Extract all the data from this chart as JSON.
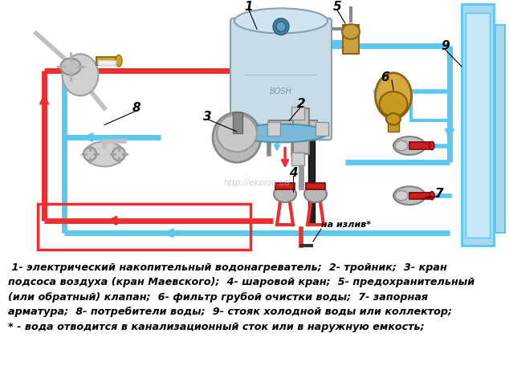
{
  "background_color": "#ffffff",
  "caption_lines": [
    " 1- электрический накопительный водонагреватель;  2- тройник;  3- кран",
    "подсоса воздуха (кран Маевского);  4- шаровой кран;  5- предохранительный",
    "(или обратный) клапан;  6- фильтр грубой очистки воды;  7- запорная",
    "арматура;  8- потребители воды;  9- стояк холодной воды или коллектор;",
    "* - вода отводится в канализационный сток или в наружную емкость;"
  ],
  "caption_fontsize": 9.2,
  "cold": "#5bc8f0",
  "hot": "#e83030",
  "black": "#000000",
  "figsize": [
    6.34,
    4.61
  ],
  "dpi": 100
}
